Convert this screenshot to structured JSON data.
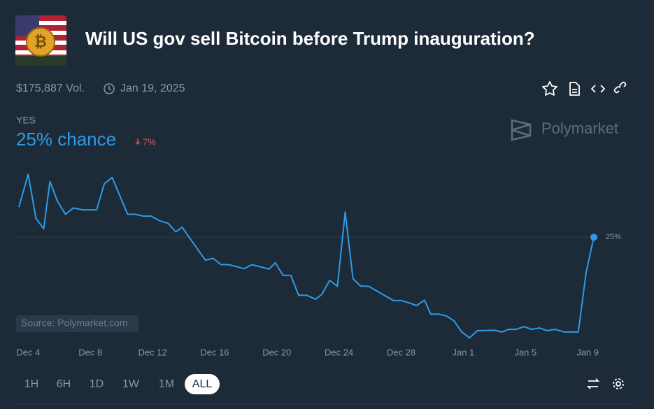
{
  "header": {
    "title": "Will US gov sell Bitcoin before Trump inauguration?",
    "volume": "$175,887 Vol.",
    "end_date": "Jan 19, 2025"
  },
  "outcome": {
    "label": "YES",
    "chance": "25% chance",
    "change": "7%"
  },
  "brand": "Polymarket",
  "source": "Source: Polymarket.com",
  "time_ranges": [
    "1H",
    "6H",
    "1D",
    "1W",
    "1M",
    "ALL"
  ],
  "chart_data": {
    "type": "line",
    "color": "#2e9be6",
    "grid": true,
    "x": [
      -0.6,
      0.0,
      0.5,
      1.0,
      1.4,
      1.9,
      2.4,
      2.9,
      3.5,
      4.4,
      4.9,
      5.4,
      6.4,
      6.9,
      7.4,
      7.9,
      8.5,
      9.0,
      9.5,
      9.9,
      11.4,
      11.9,
      12.4,
      12.9,
      13.9,
      14.4,
      15.5,
      15.9,
      16.4,
      16.9,
      17.4,
      17.9,
      18.5,
      18.9,
      19.4,
      19.9,
      20.4,
      20.9,
      21.4,
      21.9,
      23.5,
      24.0,
      24.5,
      25.0,
      25.5,
      25.9,
      26.4,
      26.9,
      27.4,
      27.9,
      28.4,
      28.9,
      30.0,
      30.5,
      30.9,
      31.4,
      31.9,
      32.4,
      32.9,
      33.4,
      33.9,
      34.5,
      35.4,
      35.9,
      36.4
    ],
    "values": [
      31.7,
      39.0,
      29.2,
      26.9,
      37.4,
      32.9,
      30.1,
      31.5,
      31.1,
      31.1,
      36.9,
      38.3,
      30.1,
      30.1,
      29.7,
      29.7,
      28.6,
      28.1,
      26.2,
      27.2,
      19.9,
      20.3,
      18.9,
      18.9,
      18.0,
      18.9,
      17.9,
      19.3,
      16.5,
      16.5,
      12.1,
      12.1,
      11.2,
      12.3,
      15.4,
      14.1,
      30.6,
      15.8,
      14.1,
      14.1,
      10.9,
      10.9,
      10.4,
      9.8,
      11.0,
      7.9,
      7.9,
      7.5,
      6.4,
      3.9,
      2.6,
      4.2,
      4.3,
      3.9,
      4.5,
      4.5,
      5.1,
      4.5,
      4.8,
      4.2,
      4.5,
      3.9,
      3.9,
      17.1,
      25.0
    ],
    "xlim": [
      -0.6,
      36.4
    ],
    "ylim": [
      0,
      42
    ],
    "xticks": [
      {
        "value": 0,
        "label": "Dec 4"
      },
      {
        "value": 4,
        "label": "Dec 8"
      },
      {
        "value": 8,
        "label": "Dec 12"
      },
      {
        "value": 12,
        "label": "Dec 16"
      },
      {
        "value": 16,
        "label": "Dec 20"
      },
      {
        "value": 20,
        "label": "Dec 24"
      },
      {
        "value": 24,
        "label": "Dec 28"
      },
      {
        "value": 28,
        "label": "Jan 1"
      },
      {
        "value": 32,
        "label": "Jan 5"
      },
      {
        "value": 36,
        "label": "Jan 9"
      }
    ],
    "yticks": [
      {
        "value": 25,
        "label": "25%"
      }
    ]
  }
}
